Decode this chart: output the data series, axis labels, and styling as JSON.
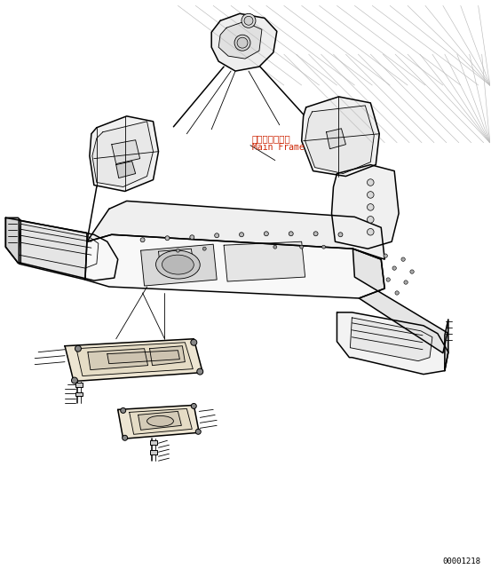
{
  "bg_color": "#ffffff",
  "line_color": "#000000",
  "label_main_frame_jp": "メインフレーム",
  "label_main_frame_en": "Main Frame",
  "part_number": "00001218",
  "fig_width": 5.53,
  "fig_height": 6.5,
  "dpi": 100
}
